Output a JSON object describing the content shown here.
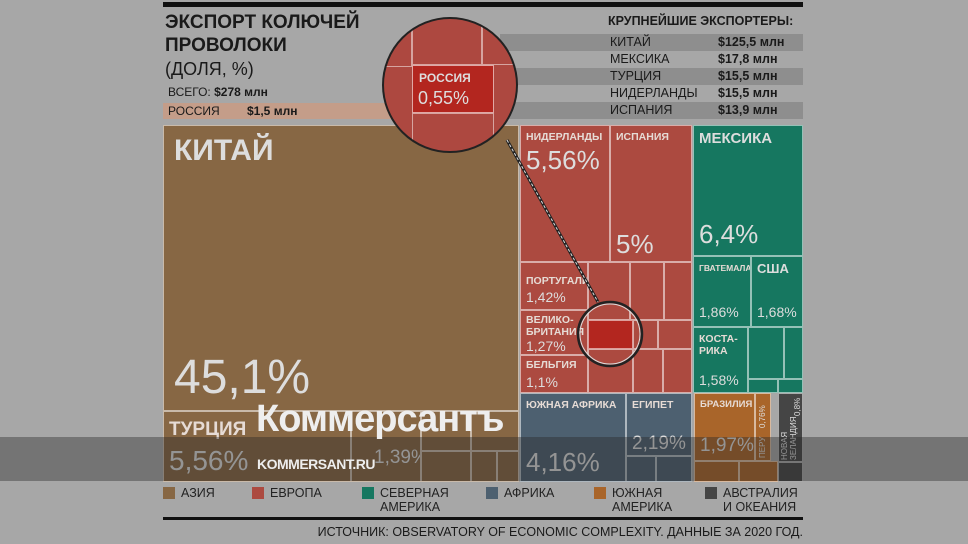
{
  "header": {
    "title": "ЭКСПОРТ КОЛЮЧЕЙ ПРОВОЛОКИ",
    "subtitle": "(ДОЛЯ, %)",
    "total_label": "ВСЕГО:",
    "total_value": "$278 млн",
    "russia_label": "РОССИЯ",
    "russia_value": "$1,5 млн"
  },
  "top_exporters": {
    "title": "КРУПНЕЙШИЕ ЭКСПОРТЕРЫ:",
    "rows": [
      {
        "country": "КИТАЙ",
        "value": "$125,5 млн"
      },
      {
        "country": "МЕКСИКА",
        "value": "$17,8 млн"
      },
      {
        "country": "ТУРЦИЯ",
        "value": "$15,5 млн"
      },
      {
        "country": "НИДЕРЛАНДЫ",
        "value": "$15,5 млн"
      },
      {
        "country": "ИСПАНИЯ",
        "value": "$13,9 млн"
      }
    ]
  },
  "magnifier": {
    "label": "РОССИЯ",
    "value": "0,55%"
  },
  "chart_data": {
    "type": "treemap",
    "title": "ЭКСПОРТ КОЛЮЧЕЙ ПРОВОЛОКИ (ДОЛЯ, %)",
    "unit": "%",
    "cells": [
      {
        "name": "КИТАЙ",
        "region": "АЗИЯ",
        "value": 45.1,
        "label": "45,1%"
      },
      {
        "name": "ТУРЦИЯ",
        "region": "АЗИЯ",
        "value": 5.56,
        "label": "5,56%"
      },
      {
        "name": "",
        "region": "АЗИЯ",
        "value": 1.39,
        "label": "1,39%"
      },
      {
        "name": "НИДЕРЛАНДЫ",
        "region": "ЕВРОПА",
        "value": 5.56,
        "label": "5,56%"
      },
      {
        "name": "ИСПАНИЯ",
        "region": "ЕВРОПА",
        "value": 5,
        "label": "5%"
      },
      {
        "name": "ПОРТУГАЛИЯ",
        "region": "ЕВРОПА",
        "value": 1.42,
        "label": "1,42%"
      },
      {
        "name": "ВЕЛИКО-БРИТАНИЯ",
        "region": "ЕВРОПА",
        "value": 1.27,
        "label": "1,27%"
      },
      {
        "name": "БЕЛЬГИЯ",
        "region": "ЕВРОПА",
        "value": 1.1,
        "label": "1,1%"
      },
      {
        "name": "РОССИЯ",
        "region": "ЕВРОПА",
        "value": 0.55,
        "label": "0,55%"
      },
      {
        "name": "МЕКСИКА",
        "region": "СЕВЕРНАЯ АМЕРИКА",
        "value": 6.4,
        "label": "6,4%"
      },
      {
        "name": "ГВАТЕМАЛА",
        "region": "СЕВЕРНАЯ АМЕРИКА",
        "value": 1.86,
        "label": "1,86%"
      },
      {
        "name": "США",
        "region": "СЕВЕРНАЯ АМЕРИКА",
        "value": 1.68,
        "label": "1,68%"
      },
      {
        "name": "КОСТА-РИКА",
        "region": "СЕВЕРНАЯ АМЕРИКА",
        "value": 1.58,
        "label": "1,58%"
      },
      {
        "name": "ЮЖНАЯ АФРИКА",
        "region": "АФРИКА",
        "value": 4.16,
        "label": "4,16%"
      },
      {
        "name": "ЕГИПЕТ",
        "region": "АФРИКА",
        "value": 2.19,
        "label": "2,19%"
      },
      {
        "name": "БРАЗИЛИЯ",
        "region": "ЮЖНАЯ АМЕРИКА",
        "value": 1.97,
        "label": "1,97%"
      },
      {
        "name": "ПЕРУ",
        "region": "ЮЖНАЯ АМЕРИКА",
        "value": 0.76,
        "label": "0,76%"
      },
      {
        "name": "НОВАЯ ЗЕЛАНДИЯ",
        "region": "АВСТРАЛИЯ И ОКЕАНИЯ",
        "value": 0.8,
        "label": "0,8%"
      }
    ],
    "legend": [
      {
        "label": "АЗИЯ",
        "color": "#876744"
      },
      {
        "label": "ЕВРОПА",
        "color": "#ac4a40"
      },
      {
        "label": "СЕВЕРНАЯ АМЕРИКА",
        "color": "#167760"
      },
      {
        "label": "АФРИКА",
        "color": "#4d6070"
      },
      {
        "label": "ЮЖНАЯ АМЕРИКА",
        "color": "#a9652a"
      },
      {
        "label": "АВСТРАЛИЯ И ОКЕАНИЯ",
        "color": "#454545"
      }
    ]
  },
  "source": "ИСТОЧНИК: OBSERVATORY OF ECONOMIC COMPLEXITY. ДАННЫЕ ЗА 2020 ГОД.",
  "watermark": {
    "logo": "Коммерсантъ",
    "url": "KOMMERSANT.RU"
  }
}
